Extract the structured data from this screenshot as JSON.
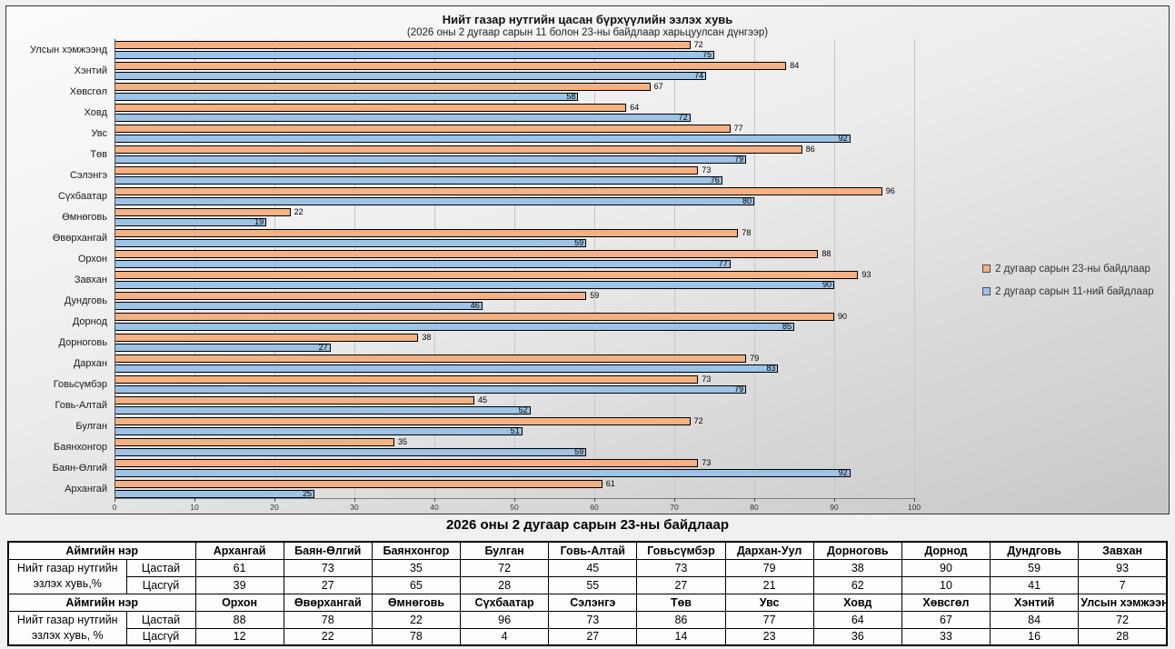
{
  "chart_data": {
    "type": "bar",
    "orientation": "horizontal",
    "title": "Нийт газар нутгийн цасан бүрхүүлийн эзлэх хувь",
    "subtitle": "(2026 оны 2 дугаар сарын 11 болон 23-ны байдлаар харьцуулсан дүнгээр)",
    "categories": [
      "Улсын хэмжээнд",
      "Хэнтий",
      "Хөвсгөл",
      "Ховд",
      "Увс",
      "Төв",
      "Сэлэнгэ",
      "Сүхбаатар",
      "Өмнөговь",
      "Өвөрхангай",
      "Орхон",
      "Завхан",
      "Дундговь",
      "Дорнод",
      "Дорноговь",
      "Дархан",
      "Говьсүмбэр",
      "Говь-Алтай",
      "Булган",
      "Баянхонгор",
      "Баян-Өлгий",
      "Архангай"
    ],
    "series": [
      {
        "name": "2 дугаар сарын 23-ны байдлаар",
        "color": "#F4B183",
        "values": [
          72,
          84,
          67,
          64,
          77,
          86,
          73,
          96,
          22,
          78,
          88,
          93,
          59,
          90,
          38,
          79,
          73,
          45,
          72,
          35,
          73,
          61
        ]
      },
      {
        "name": "2 дугаар сарын 11-ний байдлаар",
        "color": "#9DC3E6",
        "values": [
          75,
          74,
          58,
          72,
          92,
          79,
          76,
          80,
          19,
          59,
          77,
          90,
          46,
          85,
          27,
          83,
          79,
          52,
          51,
          59,
          92,
          25
        ]
      }
    ],
    "xlim": [
      0,
      100
    ],
    "xticks": [
      0,
      10,
      20,
      30,
      40,
      50,
      60,
      70,
      80,
      90,
      100
    ],
    "grid": true,
    "legend_position": "right",
    "data_labels": true
  },
  "table": {
    "heading": "2026 оны 2 дугаар сарын 23-ны байдлаар",
    "sections": [
      {
        "header_label": "Аймгийн нэр",
        "row_label": "Нийт газар нутгийн эзлэх хувь,%",
        "columns": [
          "Архангай",
          "Баян-Өлгий",
          "Баянхонгор",
          "Булган",
          "Говь-Алтай",
          "Говьсүмбэр",
          "Дархан-Уул",
          "Дорноговь",
          "Дорнод",
          "Дундговь",
          "Завхан"
        ],
        "rows": [
          {
            "label": "Цастай",
            "values": [
              61,
              73,
              35,
              72,
              45,
              73,
              79,
              38,
              90,
              59,
              93
            ]
          },
          {
            "label": "Цасгүй",
            "values": [
              39,
              27,
              65,
              28,
              55,
              27,
              21,
              62,
              10,
              41,
              7
            ]
          }
        ]
      },
      {
        "header_label": "Аймгийн нэр",
        "row_label": "Нийт газар нутгийн эзлэх хувь, %",
        "columns": [
          "Орхон",
          "Өвөрхангай",
          "Өмнөговь",
          "Сүхбаатар",
          "Сэлэнгэ",
          "Төв",
          "Увс",
          "Ховд",
          "Хөвсгөл",
          "Хэнтий",
          "Улсын хэмжээнд"
        ],
        "rows": [
          {
            "label": "Цастай",
            "values": [
              88,
              78,
              22,
              96,
              73,
              86,
              77,
              64,
              67,
              84,
              72
            ]
          },
          {
            "label": "Цасгүй",
            "values": [
              12,
              22,
              78,
              4,
              27,
              14,
              23,
              36,
              33,
              16,
              28
            ]
          }
        ]
      }
    ]
  }
}
